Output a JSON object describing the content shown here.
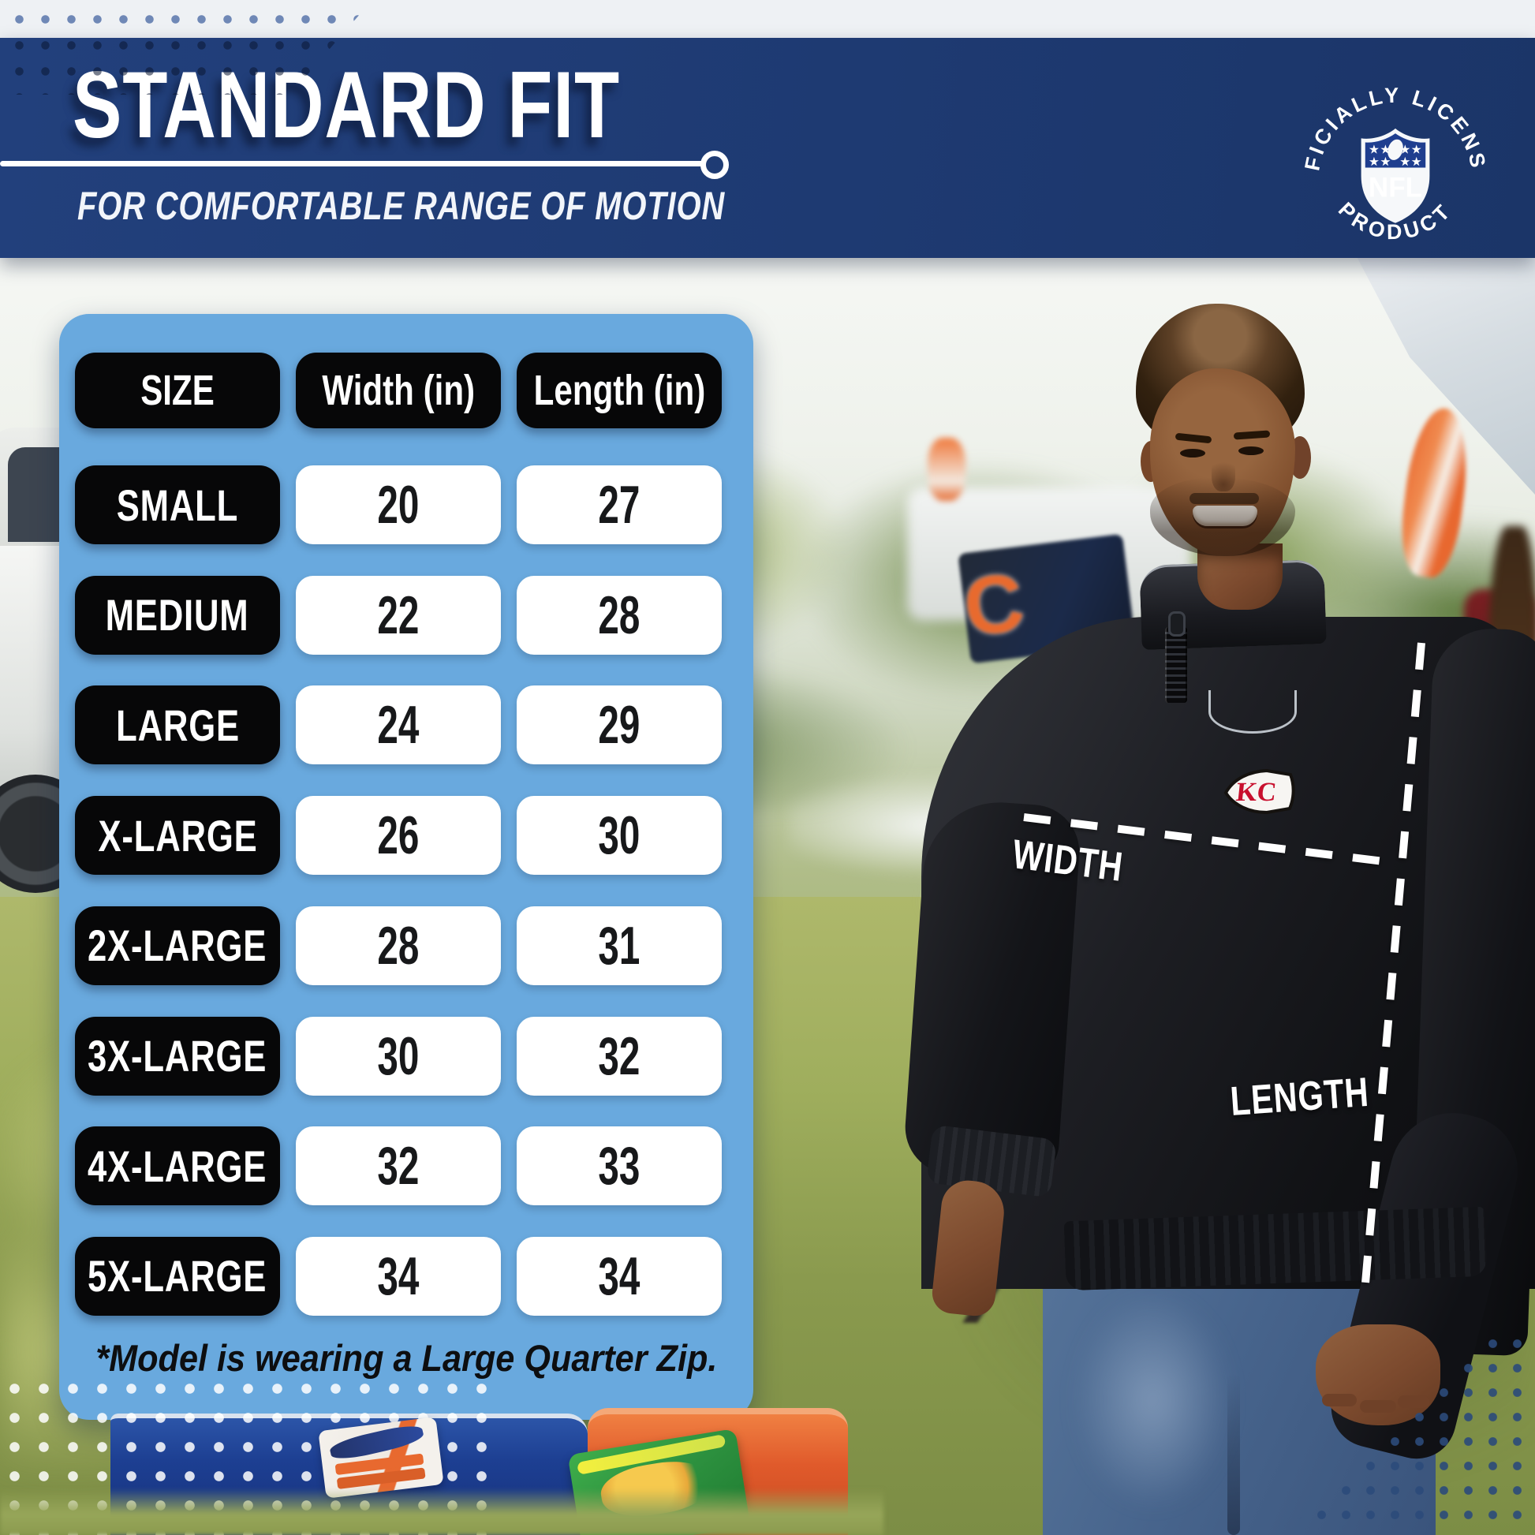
{
  "banner": {
    "title": "STANDARD FIT",
    "subtitle": "FOR COMFORTABLE RANGE OF MOTION"
  },
  "badge": {
    "arc_top": "OFFICIALLY LICENSED",
    "arc_bottom": "PRODUCT",
    "shield_label": "NFL"
  },
  "size_table": {
    "headers": [
      "SIZE",
      "Width (in)",
      "Length (in)"
    ],
    "rows": [
      {
        "size": "SMALL",
        "width": "20",
        "length": "27"
      },
      {
        "size": "MEDIUM",
        "width": "22",
        "length": "28"
      },
      {
        "size": "LARGE",
        "width": "24",
        "length": "29"
      },
      {
        "size": "X-LARGE",
        "width": "26",
        "length": "30"
      },
      {
        "size": "2X-LARGE",
        "width": "28",
        "length": "31"
      },
      {
        "size": "3X-LARGE",
        "width": "30",
        "length": "32"
      },
      {
        "size": "4X-LARGE",
        "width": "32",
        "length": "33"
      },
      {
        "size": "5X-LARGE",
        "width": "34",
        "length": "34"
      }
    ],
    "footnote": "*Model is wearing a Large Quarter Zip."
  },
  "measurements": {
    "width_label": "WIDTH",
    "length_label": "LENGTH"
  },
  "chest_logo": {
    "text": "KC"
  },
  "background_items": {
    "bears_letter": "C"
  },
  "colors": {
    "banner_navy": "#1e3a72",
    "panel_blue": "#69a9de",
    "pill_black": "#070708",
    "chiefs_red": "#c8102e",
    "accent_orange": "#e0662f",
    "dot_blue": "#6f88b6"
  },
  "chart_data": {
    "type": "table",
    "title": "STANDARD FIT",
    "subtitle": "FOR COMFORTABLE RANGE OF MOTION",
    "columns": [
      "SIZE",
      "Width (in)",
      "Length (in)"
    ],
    "rows": [
      [
        "SMALL",
        20,
        27
      ],
      [
        "MEDIUM",
        22,
        28
      ],
      [
        "LARGE",
        24,
        29
      ],
      [
        "X-LARGE",
        26,
        30
      ],
      [
        "2X-LARGE",
        28,
        31
      ],
      [
        "3X-LARGE",
        30,
        32
      ],
      [
        "4X-LARGE",
        32,
        33
      ],
      [
        "5X-LARGE",
        34,
        34
      ]
    ],
    "note": "*Model is wearing a Large Quarter Zip."
  }
}
